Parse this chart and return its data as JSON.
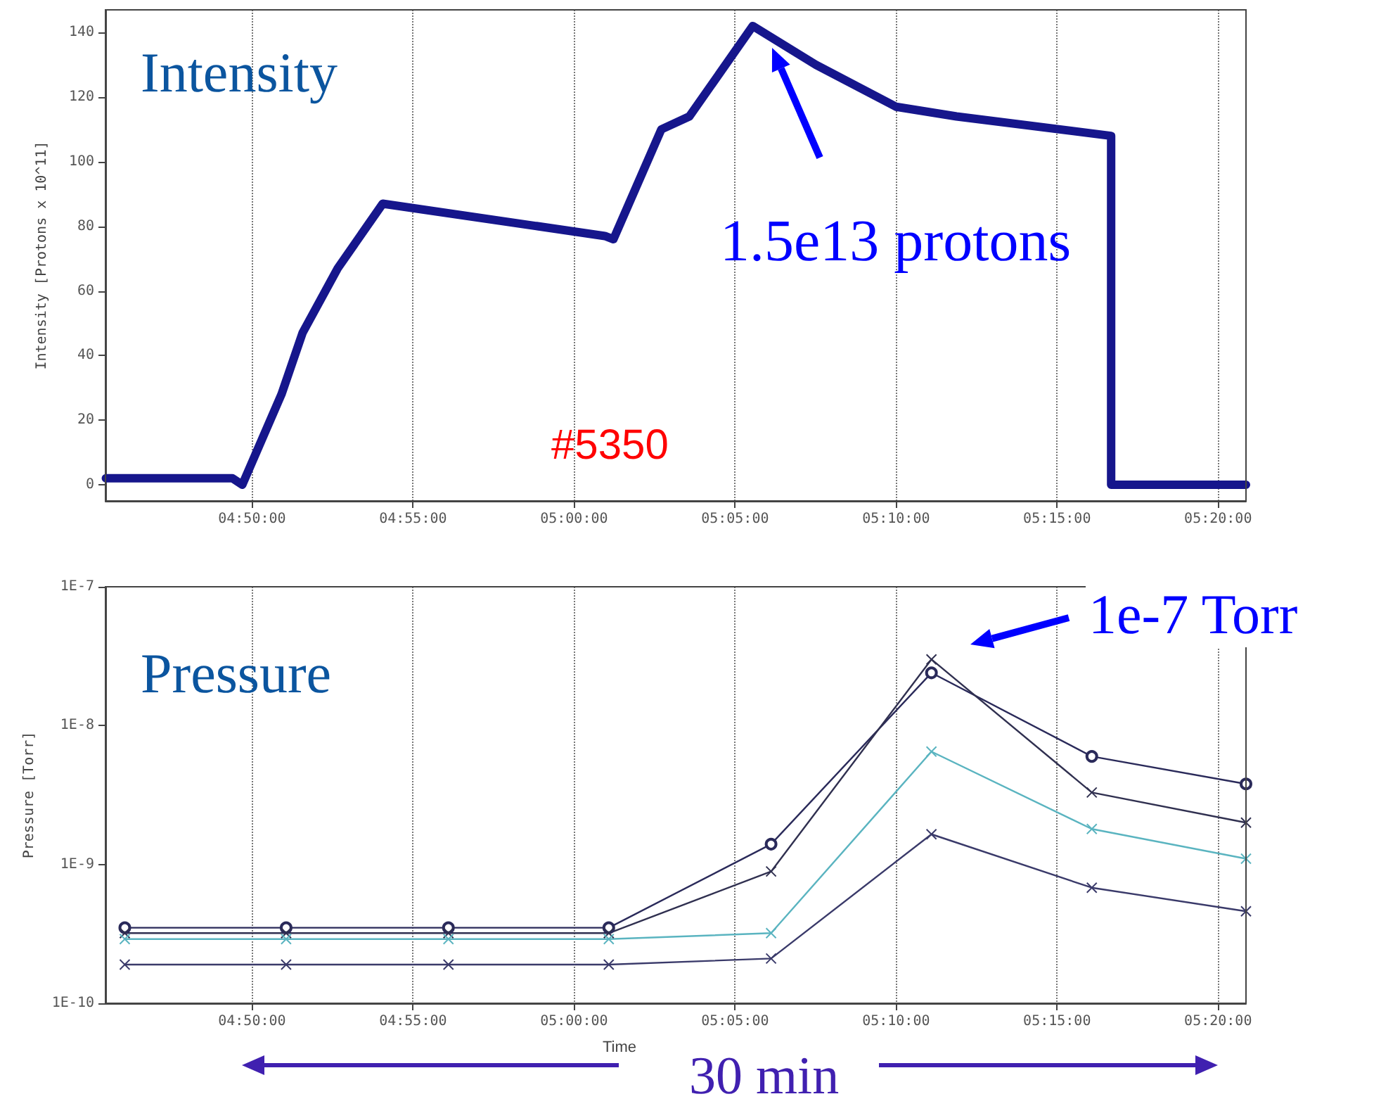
{
  "chart_data": [
    {
      "type": "line",
      "ylabel": "Intensity [Protons x 10^11]",
      "annotations": [
        "Intensity",
        "1.5e13 protons",
        "#5350"
      ],
      "xlim": [
        4.7575,
        5.3478
      ],
      "xticks": [
        {
          "value": 4.833333333,
          "label": "04:50:00"
        },
        {
          "value": 4.916666667,
          "label": "04:55:00"
        },
        {
          "value": 5,
          "label": "05:00:00"
        },
        {
          "value": 5.083333333,
          "label": "05:05:00"
        },
        {
          "value": 5.166666667,
          "label": "05:10:00"
        },
        {
          "value": 5.25,
          "label": "05:15:00"
        },
        {
          "value": 5.333333333,
          "label": "05:20:00"
        }
      ],
      "ylim": [
        -5,
        147
      ],
      "yticks": [
        0,
        20,
        40,
        60,
        80,
        100,
        120,
        140
      ],
      "grid": "x",
      "marker": "none",
      "line_style": "solid",
      "series": [
        {
          "color": "#16168c",
          "x": [
            4.7577,
            4.8232,
            4.8283,
            4.8486,
            4.8595,
            4.8777,
            4.901,
            5.016,
            5.0204,
            5.0452,
            5.0597,
            5.0925,
            5.1252,
            5.1667,
            5.198,
            5.278,
            5.278,
            5.3478
          ],
          "values": [
            2,
            2,
            0,
            28,
            47,
            67,
            87,
            77,
            76,
            110,
            114,
            142,
            130,
            117,
            114,
            108,
            0,
            0
          ]
        }
      ]
    },
    {
      "type": "line",
      "xlabel": "Time",
      "ylabel": "Pressure [Torr]",
      "annotations": [
        "Pressure",
        "1e-7 Torr",
        "30 min"
      ],
      "xlim": [
        4.7575,
        5.3478
      ],
      "xticks": [
        {
          "value": 4.833333333,
          "label": "04:50:00"
        },
        {
          "value": 4.916666667,
          "label": "04:55:00"
        },
        {
          "value": 5,
          "label": "05:00:00"
        },
        {
          "value": 5.083333333,
          "label": "05:05:00"
        },
        {
          "value": 5.166666667,
          "label": "05:10:00"
        },
        {
          "value": 5.25,
          "label": "05:15:00"
        },
        {
          "value": 5.333333333,
          "label": "05:20:00"
        }
      ],
      "ylim": [
        1e-10,
        1e-07
      ],
      "yticks": [
        {
          "value": 1e-10,
          "label": "1E-10"
        },
        {
          "value": 1e-09,
          "label": "1E-9"
        },
        {
          "value": 1e-08,
          "label": "1E-8"
        },
        {
          "value": 1e-07,
          "label": "1E-7"
        }
      ],
      "log": "y",
      "grid": "x",
      "marker": "cross",
      "line_style": "solid",
      "series": [
        {
          "color": "#2a2a5a",
          "marker": "circle",
          "x": [
            4.7675,
            4.851,
            4.935,
            5.018,
            5.102,
            5.185,
            5.268,
            5.3478
          ],
          "values": [
            3.5e-10,
            3.5e-10,
            3.5e-10,
            3.5e-10,
            1.4e-09,
            2.4e-08,
            6e-09,
            3.8e-09
          ]
        },
        {
          "color": "#303050",
          "x": [
            4.7675,
            4.851,
            4.935,
            5.018,
            5.102,
            5.185,
            5.268,
            5.3478
          ],
          "values": [
            3.2e-10,
            3.2e-10,
            3.2e-10,
            3.2e-10,
            8.9e-10,
            3e-08,
            3.3e-09,
            2e-09
          ]
        },
        {
          "color": "#5ab4c0",
          "x": [
            4.7675,
            4.851,
            4.935,
            5.018,
            5.102,
            5.185,
            5.268,
            5.3478
          ],
          "values": [
            2.9e-10,
            2.9e-10,
            2.9e-10,
            2.9e-10,
            3.2e-10,
            6.5e-09,
            1.8e-09,
            1.1e-09
          ]
        },
        {
          "color": "#3a3a6a",
          "x": [
            4.7675,
            4.851,
            4.935,
            5.018,
            5.102,
            5.185,
            5.268,
            5.3478
          ],
          "values": [
            1.9e-10,
            1.9e-10,
            1.9e-10,
            1.9e-10,
            2.1e-10,
            1.65e-09,
            6.8e-10,
            4.6e-10
          ]
        }
      ]
    }
  ]
}
